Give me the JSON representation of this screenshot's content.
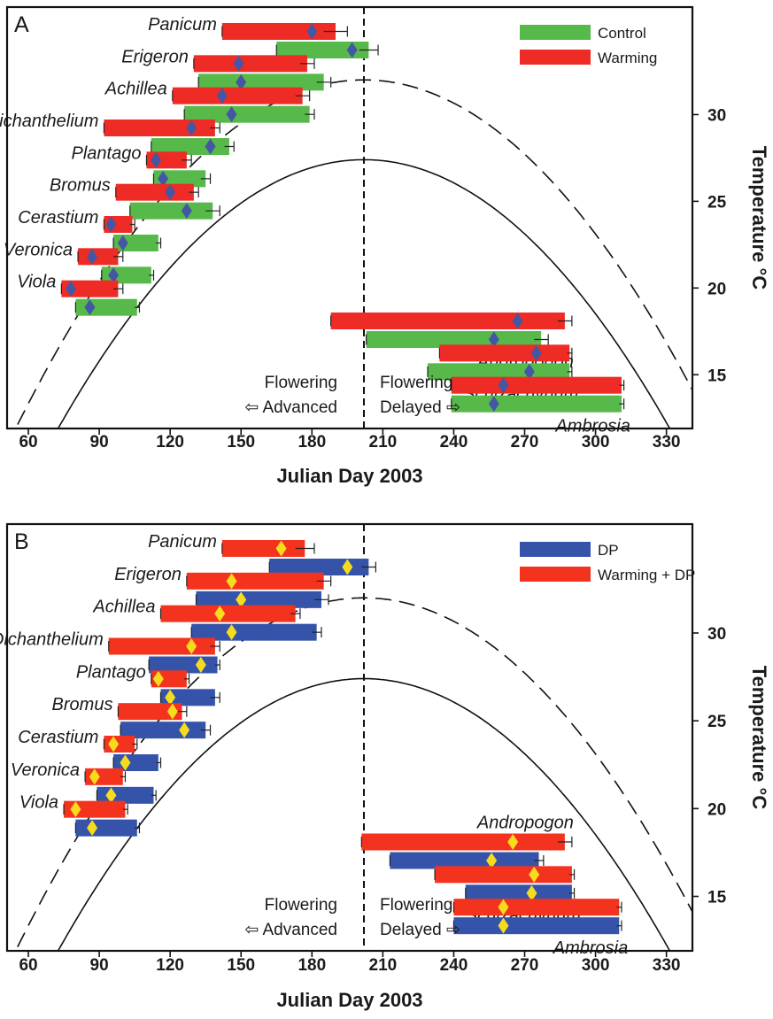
{
  "chart_data": [
    {
      "type": "bar",
      "panel_label": "A",
      "xlabel": "Julian Day 2003",
      "ylabel": "Temperature °C",
      "xlim": [
        51,
        341
      ],
      "ylim": [
        11.9,
        36.2
      ],
      "xticks": [
        60,
        90,
        120,
        150,
        180,
        210,
        240,
        270,
        300,
        330
      ],
      "yticks": [
        15,
        20,
        25,
        30
      ],
      "divider_x": 202,
      "note_left": [
        "Flowering",
        "⇦ Advanced"
      ],
      "note_right": [
        "Flowering",
        "Delayed ⇨"
      ],
      "marker_color": "#4457a4",
      "series": [
        {
          "name": "Control",
          "color": "#56b94a"
        },
        {
          "name": "Warming",
          "color": "#ee2b24"
        }
      ],
      "curves": [
        {
          "style": "solid",
          "peak_x": 202,
          "peak_y": 27.4,
          "x_at_12": 73
        },
        {
          "style": "dashed",
          "peak_x": 202,
          "peak_y": 32.0,
          "x_at_12": 55
        }
      ],
      "species": [
        {
          "name": "Panicum",
          "label_side": "left",
          "ranges": [
            {
              "series": "Warming",
              "start": 142,
              "end": 190,
              "mean": 180,
              "err": 5
            },
            {
              "series": "Control",
              "start": 165,
              "end": 204,
              "mean": 197,
              "err": 4
            }
          ]
        },
        {
          "name": "Erigeron",
          "label_side": "left",
          "ranges": [
            {
              "series": "Warming",
              "start": 130,
              "end": 178,
              "mean": 149,
              "err": 3
            },
            {
              "series": "Control",
              "start": 132,
              "end": 185,
              "mean": 150,
              "err": 3
            }
          ]
        },
        {
          "name": "Achillea",
          "label_side": "left",
          "ranges": [
            {
              "series": "Warming",
              "start": 121,
              "end": 176,
              "mean": 142,
              "err": 3
            },
            {
              "series": "Control",
              "start": 126,
              "end": 179,
              "mean": 146,
              "err": 2
            }
          ]
        },
        {
          "name": "Dichanthelium",
          "label_side": "left",
          "ranges": [
            {
              "series": "Warming",
              "start": 92,
              "end": 139,
              "mean": 129,
              "err": 2
            },
            {
              "series": "Control",
              "start": 112,
              "end": 145,
              "mean": 137,
              "err": 2
            }
          ]
        },
        {
          "name": "Plantago",
          "label_side": "left",
          "ranges": [
            {
              "series": "Warming",
              "start": 110,
              "end": 127,
              "mean": 114,
              "err": 2
            },
            {
              "series": "Control",
              "start": 113,
              "end": 135,
              "mean": 117,
              "err": 2
            }
          ]
        },
        {
          "name": "Bromus",
          "label_side": "left",
          "ranges": [
            {
              "series": "Warming",
              "start": 97,
              "end": 130,
              "mean": 120,
              "err": 2
            },
            {
              "series": "Control",
              "start": 103,
              "end": 138,
              "mean": 127,
              "err": 3
            }
          ]
        },
        {
          "name": "Cerastium",
          "label_side": "left",
          "ranges": [
            {
              "series": "Warming",
              "start": 92,
              "end": 104,
              "mean": 95,
              "err": 1
            },
            {
              "series": "Control",
              "start": 96,
              "end": 115,
              "mean": 100,
              "err": 1
            }
          ]
        },
        {
          "name": "Veronica",
          "label_side": "left",
          "ranges": [
            {
              "series": "Warming",
              "start": 81,
              "end": 98,
              "mean": 87,
              "err": 2
            },
            {
              "series": "Control",
              "start": 91,
              "end": 112,
              "mean": 96,
              "err": 1
            }
          ]
        },
        {
          "name": "Viola",
          "label_side": "left",
          "ranges": [
            {
              "series": "Warming",
              "start": 74,
              "end": 98,
              "mean": 78,
              "err": 2
            },
            {
              "series": "Control",
              "start": 80,
              "end": 106,
              "mean": 86,
              "err": 1
            }
          ]
        },
        {
          "name": "Andropogon",
          "label_side": "below-right",
          "ranges": [
            {
              "series": "Warming",
              "start": 188,
              "end": 287,
              "mean": 267,
              "err": 3
            },
            {
              "series": "Control",
              "start": 203,
              "end": 277,
              "mean": 257,
              "err": 3
            }
          ]
        },
        {
          "name": "Schizachyrium",
          "label_side": "below-right",
          "ranges": [
            {
              "series": "Warming",
              "start": 234,
              "end": 289,
              "mean": 275,
              "err": 1
            },
            {
              "series": "Control",
              "start": 229,
              "end": 289,
              "mean": 272,
              "err": 1
            }
          ]
        },
        {
          "name": "Ambrosia",
          "label_side": "below-right",
          "ranges": [
            {
              "series": "Warming",
              "start": 239,
              "end": 311,
              "mean": 261,
              "err": 1
            },
            {
              "series": "Control",
              "start": 239,
              "end": 311,
              "mean": 257,
              "err": 1
            }
          ]
        }
      ]
    },
    {
      "type": "bar",
      "panel_label": "B",
      "xlabel": "Julian Day 2003",
      "ylabel": "Temperature °C",
      "xlim": [
        51,
        341
      ],
      "ylim": [
        11.9,
        36.2
      ],
      "xticks": [
        60,
        90,
        120,
        150,
        180,
        210,
        240,
        270,
        300,
        330
      ],
      "yticks": [
        15,
        20,
        25,
        30
      ],
      "divider_x": 202,
      "note_left": [
        "Flowering",
        "⇦ Advanced"
      ],
      "note_right": [
        "Flowering",
        "Delayed ⇨"
      ],
      "marker_color": "#f7dc1e",
      "series": [
        {
          "name": "DP",
          "color": "#3553a8"
        },
        {
          "name": "Warming + DP",
          "color": "#f4331f"
        }
      ],
      "curves": [
        {
          "style": "solid",
          "peak_x": 202,
          "peak_y": 27.4,
          "x_at_12": 73
        },
        {
          "style": "dashed",
          "peak_x": 202,
          "peak_y": 32.0,
          "x_at_12": 55
        }
      ],
      "species": [
        {
          "name": "Panicum",
          "label_side": "left",
          "ranges": [
            {
              "series": "Warming + DP",
              "start": 142,
              "end": 177,
              "mean": 167,
              "err": 4
            },
            {
              "series": "DP",
              "start": 162,
              "end": 204,
              "mean": 195,
              "err": 3
            }
          ]
        },
        {
          "name": "Erigeron",
          "label_side": "left",
          "ranges": [
            {
              "series": "Warming + DP",
              "start": 127,
              "end": 185,
              "mean": 146,
              "err": 3
            },
            {
              "series": "DP",
              "start": 131,
              "end": 184,
              "mean": 150,
              "err": 3
            }
          ]
        },
        {
          "name": "Achillea",
          "label_side": "left",
          "ranges": [
            {
              "series": "Warming + DP",
              "start": 116,
              "end": 173,
              "mean": 141,
              "err": 2
            },
            {
              "series": "DP",
              "start": 129,
              "end": 182,
              "mean": 146,
              "err": 2
            }
          ]
        },
        {
          "name": "Dichanthelium",
          "label_side": "left",
          "ranges": [
            {
              "series": "Warming + DP",
              "start": 94,
              "end": 139,
              "mean": 129,
              "err": 2
            },
            {
              "series": "DP",
              "start": 111,
              "end": 140,
              "mean": 133,
              "err": 1
            }
          ]
        },
        {
          "name": "Plantago",
          "label_side": "left",
          "ranges": [
            {
              "series": "Warming + DP",
              "start": 112,
              "end": 127,
              "mean": 115,
              "err": 1
            },
            {
              "series": "DP",
              "start": 116,
              "end": 139,
              "mean": 120,
              "err": 2
            }
          ]
        },
        {
          "name": "Bromus",
          "label_side": "left",
          "ranges": [
            {
              "series": "Warming + DP",
              "start": 98,
              "end": 125,
              "mean": 121,
              "err": 2
            },
            {
              "series": "DP",
              "start": 99,
              "end": 135,
              "mean": 126,
              "err": 2
            }
          ]
        },
        {
          "name": "Cerastium",
          "label_side": "left",
          "ranges": [
            {
              "series": "Warming + DP",
              "start": 92,
              "end": 105,
              "mean": 96,
              "err": 1
            },
            {
              "series": "DP",
              "start": 96,
              "end": 115,
              "mean": 101,
              "err": 1
            }
          ]
        },
        {
          "name": "Veronica",
          "label_side": "left",
          "ranges": [
            {
              "series": "Warming + DP",
              "start": 84,
              "end": 100,
              "mean": 88,
              "err": 1
            },
            {
              "series": "DP",
              "start": 89,
              "end": 113,
              "mean": 95,
              "err": 1
            }
          ]
        },
        {
          "name": "Viola",
          "label_side": "left",
          "ranges": [
            {
              "series": "Warming + DP",
              "start": 75,
              "end": 101,
              "mean": 80,
              "err": 1
            },
            {
              "series": "DP",
              "start": 80,
              "end": 106,
              "mean": 87,
              "err": 1
            }
          ]
        },
        {
          "name": "Andropogon",
          "label_side": "above-right",
          "ranges": [
            {
              "series": "Warming + DP",
              "start": 201,
              "end": 287,
              "mean": 265,
              "err": 3
            },
            {
              "series": "DP",
              "start": 213,
              "end": 276,
              "mean": 256,
              "err": 2
            }
          ]
        },
        {
          "name": "Schizachyrium",
          "label_side": "below-right",
          "ranges": [
            {
              "series": "Warming + DP",
              "start": 232,
              "end": 290,
              "mean": 274,
              "err": 1
            },
            {
              "series": "DP",
              "start": 245,
              "end": 290,
              "mean": 273,
              "err": 1
            }
          ]
        },
        {
          "name": "Ambrosia",
          "label_side": "below-right",
          "ranges": [
            {
              "series": "Warming + DP",
              "start": 240,
              "end": 310,
              "mean": 261,
              "err": 1
            },
            {
              "series": "DP",
              "start": 240,
              "end": 310,
              "mean": 261,
              "err": 1
            }
          ]
        }
      ]
    }
  ]
}
